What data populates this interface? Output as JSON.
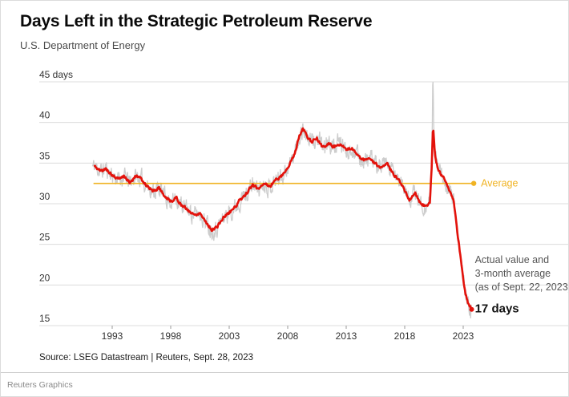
{
  "header": {
    "title": "Days Left in the Strategic Petroleum Reserve",
    "subtitle": "U.S. Department of Energy"
  },
  "chart_data": {
    "type": "line",
    "title": "Days Left in the Strategic Petroleum Reserve",
    "subtitle": "U.S. Department of Energy",
    "ylabel": "days",
    "ylim": [
      15,
      45
    ],
    "yticks": [
      15,
      20,
      25,
      30,
      35,
      40,
      45
    ],
    "ytick_labels": [
      "15",
      "20",
      "25",
      "30",
      "35",
      "40",
      "45 days"
    ],
    "xticks": [
      1993,
      1998,
      2003,
      2008,
      2013,
      2018,
      2023
    ],
    "grid": true,
    "legend_position": "annotation-right",
    "colors": {
      "actual": "#cdcdcd",
      "average3mo": "#e3120b",
      "benchmark": "#f0b323",
      "grid": "#dcdcdc",
      "axis_text": "#333333"
    },
    "benchmark": {
      "label": "Average",
      "value": 32.5,
      "x_start": 1991.4,
      "x_end": 2023.9
    },
    "series": [
      {
        "name": "Actual value",
        "type": "noisy-weekly",
        "x_start": 1991.3,
        "x_end": 2023.72,
        "noise_amp": 0.85,
        "noise_persistence": 0.55,
        "spike": {
          "center": 2020.4,
          "half_width": 0.1,
          "peak_value": 45
        }
      },
      {
        "name": "3-month average",
        "end_value": 17,
        "points": [
          [
            1991.5,
            34.6
          ],
          [
            1992.0,
            34.0
          ],
          [
            1992.5,
            34.3
          ],
          [
            1993.0,
            33.5
          ],
          [
            1993.5,
            33.0
          ],
          [
            1994.0,
            33.4
          ],
          [
            1994.5,
            32.6
          ],
          [
            1995.0,
            33.4
          ],
          [
            1995.5,
            33.0
          ],
          [
            1996.0,
            32.2
          ],
          [
            1996.5,
            31.5
          ],
          [
            1997.0,
            32.0
          ],
          [
            1997.5,
            30.9
          ],
          [
            1998.0,
            30.3
          ],
          [
            1998.5,
            30.7
          ],
          [
            1999.0,
            29.7
          ],
          [
            1999.5,
            29.2
          ],
          [
            2000.0,
            28.6
          ],
          [
            2000.5,
            28.9
          ],
          [
            2001.0,
            27.8
          ],
          [
            2001.5,
            26.8
          ],
          [
            2002.0,
            27.2
          ],
          [
            2002.5,
            28.3
          ],
          [
            2003.0,
            28.9
          ],
          [
            2003.5,
            29.6
          ],
          [
            2004.0,
            30.6
          ],
          [
            2004.5,
            31.3
          ],
          [
            2005.0,
            32.3
          ],
          [
            2005.5,
            31.8
          ],
          [
            2006.0,
            32.6
          ],
          [
            2006.5,
            32.1
          ],
          [
            2007.0,
            33.0
          ],
          [
            2007.5,
            33.5
          ],
          [
            2008.0,
            34.4
          ],
          [
            2008.5,
            35.8
          ],
          [
            2009.0,
            38.3
          ],
          [
            2009.3,
            39.3
          ],
          [
            2009.7,
            38.1
          ],
          [
            2010.0,
            37.6
          ],
          [
            2010.5,
            38.0
          ],
          [
            2011.0,
            36.9
          ],
          [
            2011.5,
            37.4
          ],
          [
            2012.0,
            37.0
          ],
          [
            2012.5,
            37.5
          ],
          [
            2013.0,
            36.5
          ],
          [
            2013.5,
            36.9
          ],
          [
            2014.0,
            35.9
          ],
          [
            2014.5,
            35.3
          ],
          [
            2015.0,
            35.6
          ],
          [
            2015.5,
            34.9
          ],
          [
            2016.0,
            34.4
          ],
          [
            2016.5,
            34.8
          ],
          [
            2017.0,
            33.7
          ],
          [
            2017.5,
            33.0
          ],
          [
            2018.0,
            31.7
          ],
          [
            2018.4,
            30.5
          ],
          [
            2018.9,
            31.3
          ],
          [
            2019.3,
            30.2
          ],
          [
            2019.8,
            29.6
          ],
          [
            2020.15,
            30.2
          ],
          [
            2020.32,
            35.0
          ],
          [
            2020.42,
            39.8
          ],
          [
            2020.6,
            35.8
          ],
          [
            2020.9,
            34.0
          ],
          [
            2021.3,
            33.2
          ],
          [
            2021.7,
            32.2
          ],
          [
            2022.0,
            31.0
          ],
          [
            2022.2,
            30.3
          ],
          [
            2022.45,
            27.0
          ],
          [
            2022.7,
            24.3
          ],
          [
            2022.95,
            21.3
          ],
          [
            2023.2,
            19.0
          ],
          [
            2023.45,
            17.7
          ],
          [
            2023.72,
            17.0
          ]
        ]
      }
    ],
    "annotation": {
      "lines": [
        "Actual value and",
        "3-month average",
        "(as of Sept. 22, 2023)"
      ],
      "value_label": "17 days",
      "x": 2024.0,
      "y_first_line": 22.7,
      "y_value_label": 17
    }
  },
  "footer": {
    "source": "Source: LSEG Datastream | Reuters, Sept. 28, 2023",
    "brand": "Reuters Graphics"
  }
}
